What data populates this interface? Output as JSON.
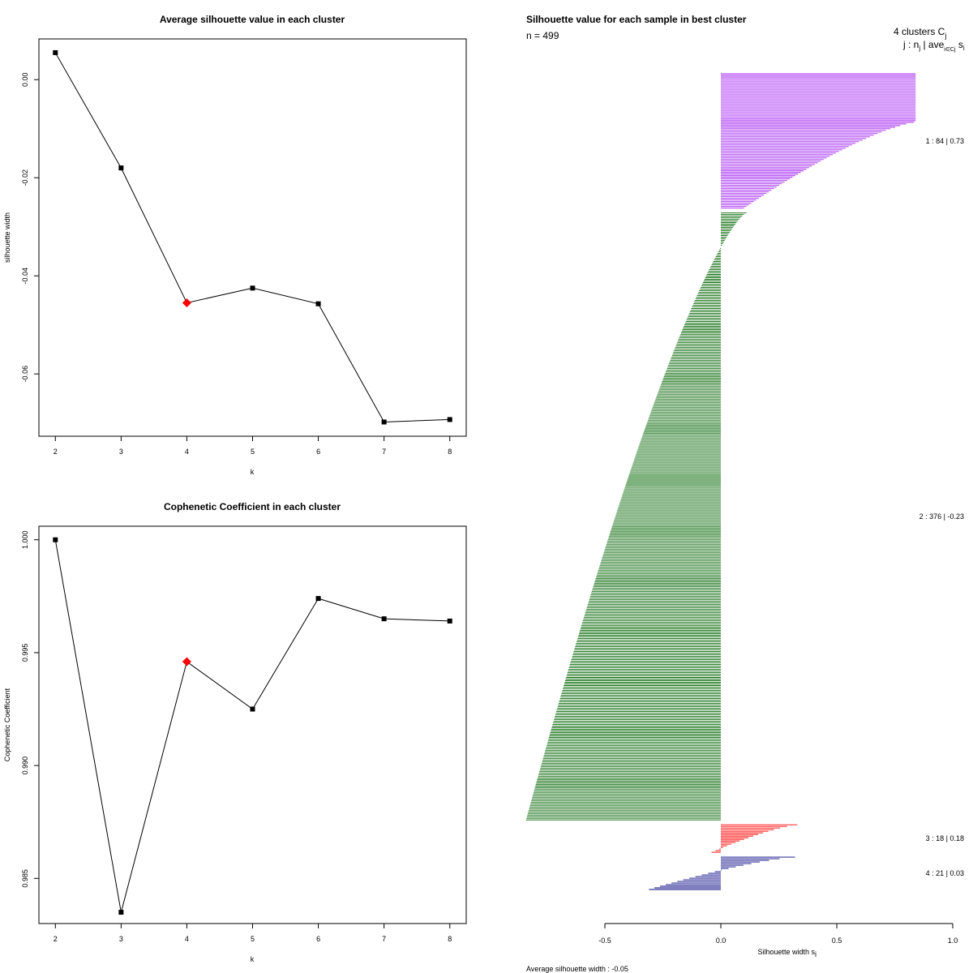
{
  "chart_data": [
    {
      "type": "line",
      "title": "Average silhouette value in each cluster",
      "xlabel": "k",
      "ylabel": "silhouette width",
      "x": [
        2,
        3,
        4,
        5,
        6,
        7,
        8
      ],
      "values": [
        0.0055,
        -0.018,
        -0.0455,
        -0.0425,
        -0.0457,
        -0.0698,
        -0.0693
      ],
      "highlight_index": 2,
      "highlight_color": "#ff0000",
      "xlim": [
        1.75,
        8.25
      ],
      "ylim": [
        -0.0727,
        0.0083
      ],
      "yticks": [
        0.0,
        -0.02,
        -0.04,
        -0.06
      ],
      "ytick_labels": [
        "0.00",
        "-0.02",
        "-0.04",
        "-0.06"
      ],
      "xtick_labels": [
        "2",
        "3",
        "4",
        "5",
        "6",
        "7",
        "8"
      ]
    },
    {
      "type": "line",
      "title": "Cophenetic Coefficient in each cluster",
      "xlabel": "k",
      "ylabel": "Cophenetic Coefficient",
      "x": [
        2,
        3,
        4,
        5,
        6,
        7,
        8
      ],
      "values": [
        1.0,
        0.9835,
        0.9946,
        0.9925,
        0.9974,
        0.9965,
        0.9964
      ],
      "highlight_index": 2,
      "highlight_color": "#ff0000",
      "xlim": [
        1.75,
        8.25
      ],
      "ylim": [
        0.983,
        1.0006
      ],
      "yticks": [
        1.0,
        0.995,
        0.99,
        0.985
      ],
      "ytick_labels": [
        "1.000",
        "0.995",
        "0.990",
        "0.985"
      ],
      "xtick_labels": [
        "2",
        "3",
        "4",
        "5",
        "6",
        "7",
        "8"
      ]
    },
    {
      "type": "bar",
      "orientation": "horizontal",
      "title": "Silhouette value for each sample in best cluster",
      "n_label": "n = 499",
      "header_line1": "4  clusters  C",
      "header_line1_sub": "j",
      "header_line2": "j :  n",
      "header_line2_sub": "j",
      "header_line2_rest": " | ave",
      "header_line2_sub2": "i∈Cj",
      "header_line2_end": " s",
      "header_line2_sub3": "i",
      "xlabel": "Silhouette width s",
      "xlabel_sub": "i",
      "xlim": [
        -0.5,
        1.0
      ],
      "xticks": [
        -0.5,
        0.0,
        0.5,
        1.0
      ],
      "xtick_labels": [
        "-0.5",
        "0.0",
        "0.5",
        "1.0"
      ],
      "footer": "Average silhouette width :  -0.05",
      "clusters": [
        {
          "id": 1,
          "n": 84,
          "label": "1 :   84  |  0.73",
          "color": "#a020f0",
          "fill": "#dd99f5",
          "max": 0.84,
          "min": 0.1,
          "flat_frac": 0.36
        },
        {
          "id": 2,
          "n": 376,
          "label": "2 :   376  |  -0.23",
          "color": "#006400",
          "max": 0.11,
          "min": -0.84,
          "flat_frac": 0.0
        },
        {
          "id": 3,
          "n": 18,
          "label": "3 :   18  |  0.18",
          "color": "#ff0000",
          "max": 0.33,
          "min": -0.04,
          "flat_frac": 0.0
        },
        {
          "id": 4,
          "n": 21,
          "label": "4 :   21  |  0.03",
          "color": "#000080",
          "max": 0.32,
          "min": -0.31,
          "flat_frac": 0.0
        }
      ]
    }
  ]
}
